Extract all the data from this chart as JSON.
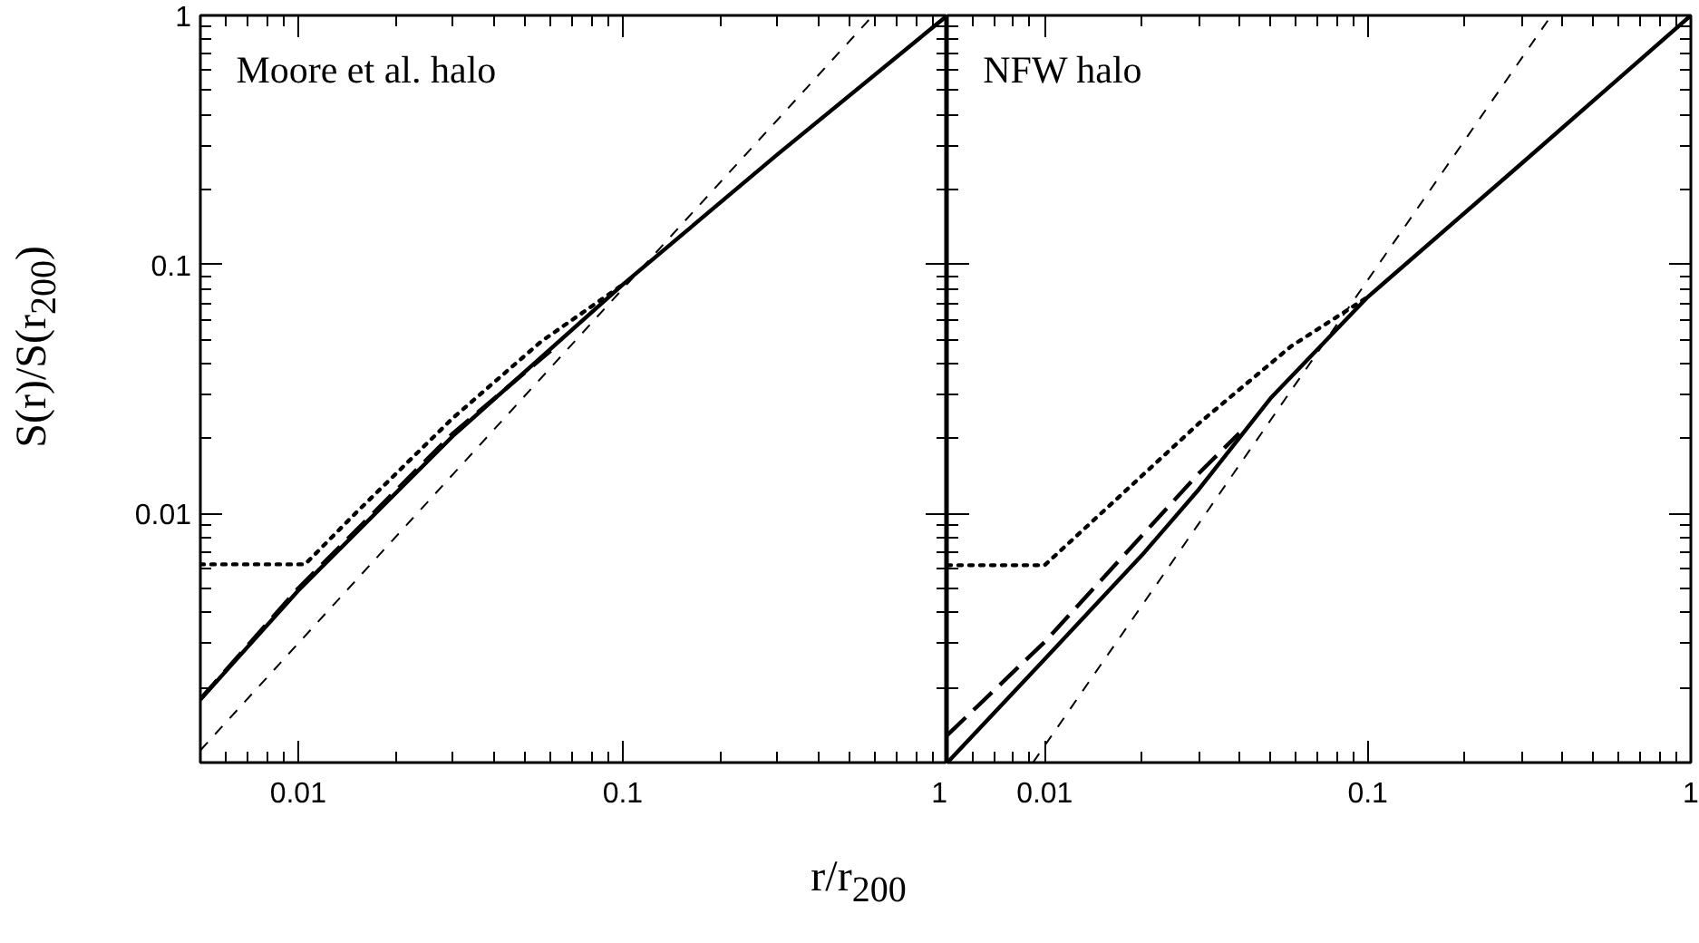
{
  "chart_data": [
    {
      "type": "line",
      "title": "Moore et al. halo",
      "xlabel": "r/r$_{200}$",
      "ylabel": "S(r)/S(r$_{200}$)",
      "log": "xy",
      "xlim": [
        0.005,
        1
      ],
      "ylim": [
        0.001,
        1
      ],
      "xticks": [
        0.01,
        0.1,
        1
      ],
      "yticks": [
        0.01,
        0.1,
        1
      ],
      "grid": false,
      "series": [
        {
          "color": "#000000",
          "line_style": "solid",
          "x": [
            0.005,
            0.01,
            0.03,
            0.1,
            0.3,
            1
          ],
          "values": [
            0.00179,
            0.0049,
            0.0205,
            0.083,
            0.277,
            1
          ]
        },
        {
          "color": "#000000",
          "line_style": "dashed",
          "x": [
            0.005,
            0.01,
            0.03,
            0.06
          ],
          "values": [
            0.0018,
            0.005,
            0.021,
            0.045
          ]
        },
        {
          "color": "#000000",
          "line_style": "dotted",
          "x": [
            0.005,
            0.0105,
            0.015,
            0.03,
            0.056,
            0.1
          ],
          "values": [
            0.00625,
            0.00625,
            0.01,
            0.0242,
            0.049,
            0.083
          ]
        },
        {
          "color": "#000000",
          "line_style": "dashed",
          "x": [
            0.005,
            0.59
          ],
          "values": [
            0.00112,
            1
          ]
        }
      ]
    },
    {
      "type": "line",
      "title": "NFW halo",
      "log": "xy",
      "xlim": [
        0.005,
        1
      ],
      "ylim": [
        0.001,
        1
      ],
      "xticks": [
        0.01,
        0.1,
        1
      ],
      "yticks": [
        0.01,
        0.1,
        1
      ],
      "grid": false,
      "tick_labels": "x",
      "series": [
        {
          "color": "#000000",
          "line_style": "solid",
          "x": [
            0.005,
            0.01,
            0.02,
            0.03,
            0.05,
            0.1,
            0.3,
            1
          ],
          "values": [
            0.001,
            0.0026,
            0.0068,
            0.0125,
            0.029,
            0.074,
            0.255,
            1
          ]
        },
        {
          "color": "#000000",
          "line_style": "dashed",
          "x": [
            0.005,
            0.01,
            0.03,
            0.04
          ],
          "values": [
            0.00129,
            0.00305,
            0.0145,
            0.021
          ]
        },
        {
          "color": "#000000",
          "line_style": "dotted",
          "x": [
            0.005,
            0.01,
            0.03,
            0.058,
            0.1
          ],
          "values": [
            0.0062,
            0.0062,
            0.023,
            0.047,
            0.074
          ]
        },
        {
          "color": "#000000",
          "line_style": "dashed",
          "x": [
            0.0092,
            0.37
          ],
          "values": [
            0.001,
            1
          ]
        }
      ]
    }
  ]
}
